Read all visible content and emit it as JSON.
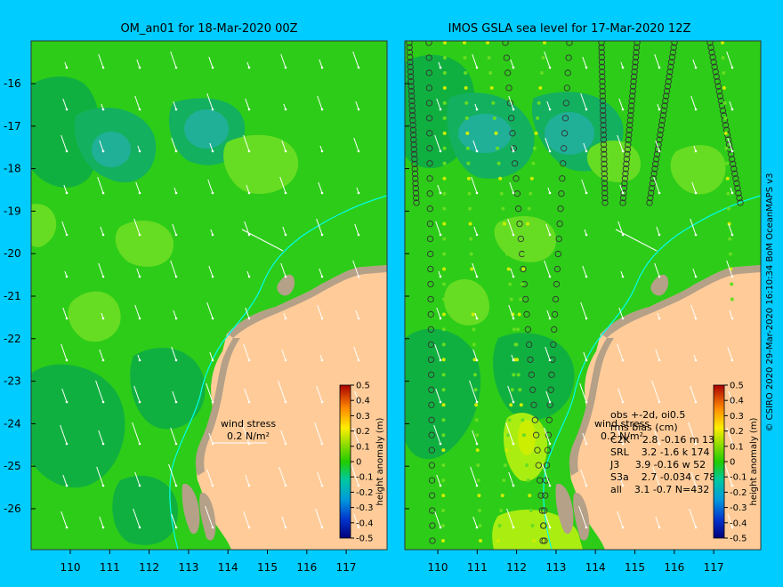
{
  "panels": {
    "left": {
      "title": "OM_an01 for 18-Mar-2020 00Z"
    },
    "right": {
      "title": "IMOS GSLA sea level  for 17-Mar-2020 12Z"
    }
  },
  "axes": {
    "lat_ticks": [
      "-16",
      "-17",
      "-18",
      "-19",
      "-20",
      "-21",
      "-22",
      "-23",
      "-24",
      "-25",
      "-26"
    ],
    "lon_ticks": [
      "110",
      "111",
      "112",
      "113",
      "114",
      "115",
      "116",
      "117"
    ]
  },
  "wind_label": {
    "line1": "wind stress",
    "line2": "0.2 N/m²"
  },
  "colorbar": {
    "label": "height anomaly (m)",
    "ticks": [
      "0.5",
      "0.4",
      "0.3",
      "0.2",
      "0.1",
      "0",
      "-0.1",
      "-0.2",
      "-0.3",
      "-0.4",
      "-0.5"
    ]
  },
  "stats": {
    "header1": "obs +-2d, oi0.5",
    "header2": "rms  bias (cm)",
    "rows": [
      "C2K    2.8 -0.16 m 13",
      "SRL    3.2 -1.6 k 174",
      "J3     3.9 -0.16 w 52",
      "S3a    2.7 -0.034 c 78",
      "all    3.1 -0.7 N=432"
    ]
  },
  "credit": "© CSIRO 2020   29-Mar-2020 16:10:34 BoM OceanMAPS v3",
  "colors": {
    "background": "#00ccff",
    "ocean_base": "#2dcc18",
    "ocean_dark": "#10b040",
    "ocean_teal": "#20b098",
    "ocean_light": "#66dd22",
    "land": "#ffcc99",
    "shore": "#b5a088"
  }
}
